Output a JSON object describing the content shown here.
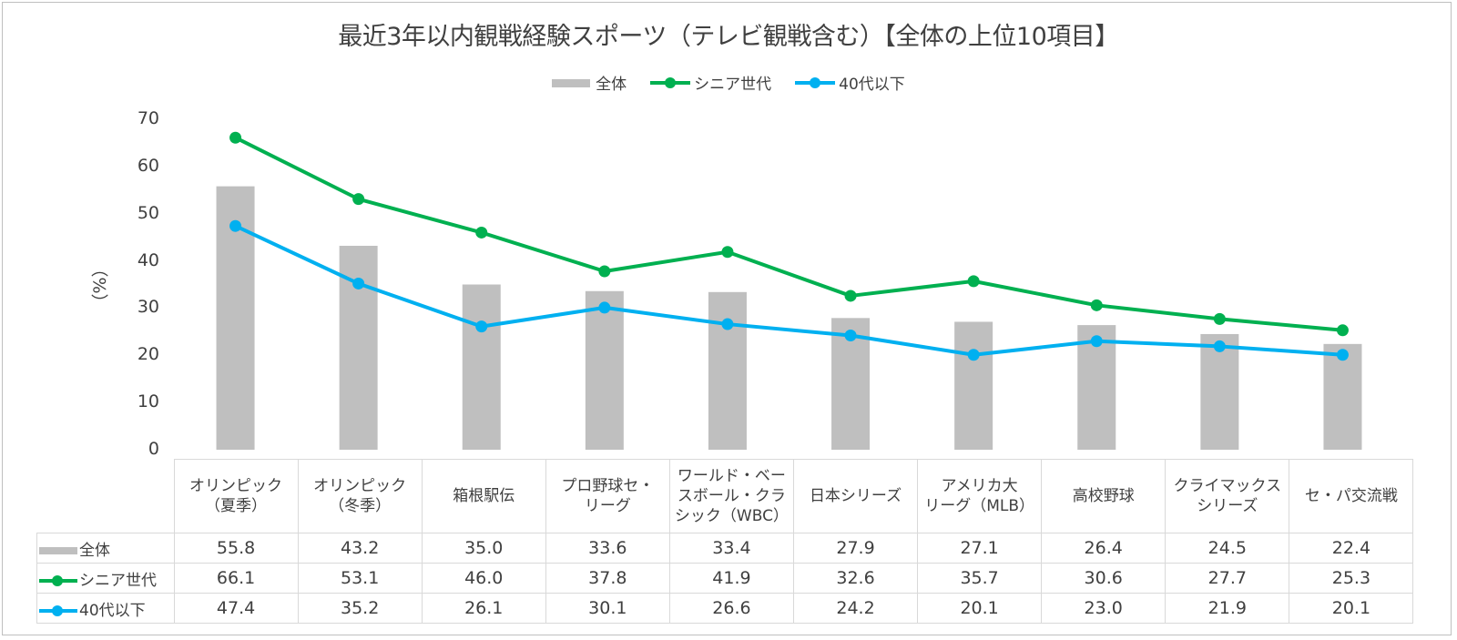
{
  "chart_data": {
    "type": "bar",
    "title": "最近3年以内観戦経験スポーツ（テレビ観戦含む）【全体の上位10項目】",
    "xlabel": "",
    "ylabel": "（%）",
    "ylim": [
      0,
      70
    ],
    "yticks": [
      "0",
      "10",
      "20",
      "30",
      "40",
      "50",
      "60",
      "70"
    ],
    "grid": false,
    "legend_position": "top-center",
    "categories": [
      "オリンピック（夏季）",
      "オリンピック（冬季）",
      "箱根駅伝",
      "プロ野球セ・リーグ",
      "ワールド・ベースボール・クラシック（WBC）",
      "日本シリーズ",
      "アメリカ大リーグ（MLB）",
      "高校野球",
      "クライマックスシリーズ",
      "セ・パ交流戦"
    ],
    "category_lines": [
      [
        "オリンピック",
        "（夏季）"
      ],
      [
        "オリンピック",
        "（冬季）"
      ],
      [
        "箱根駅伝"
      ],
      [
        "プロ野球セ・",
        "リーグ"
      ],
      [
        "ワールド・ベー",
        "スボール・クラ",
        "シック（WBC）"
      ],
      [
        "日本シリーズ"
      ],
      [
        "アメリカ大",
        "リーグ（MLB）"
      ],
      [
        "高校野球"
      ],
      [
        "クライマックス",
        "シリーズ"
      ],
      [
        "セ・パ交流戦"
      ]
    ],
    "series": [
      {
        "name": "全体",
        "type": "bar",
        "color": "#bfbfbf",
        "values": [
          55.8,
          43.2,
          35.0,
          33.6,
          33.4,
          27.9,
          27.1,
          26.4,
          24.5,
          22.4
        ],
        "labels": [
          "55.8",
          "43.2",
          "35.0",
          "33.6",
          "33.4",
          "27.9",
          "27.1",
          "26.4",
          "24.5",
          "22.4"
        ]
      },
      {
        "name": "シニア世代",
        "type": "line",
        "color": "#00b050",
        "values": [
          66.1,
          53.1,
          46.0,
          37.8,
          41.9,
          32.6,
          35.7,
          30.6,
          27.7,
          25.3
        ],
        "labels": [
          "66.1",
          "53.1",
          "46.0",
          "37.8",
          "41.9",
          "32.6",
          "35.7",
          "30.6",
          "27.7",
          "25.3"
        ]
      },
      {
        "name": "40代以下",
        "type": "line",
        "color": "#00b0f0",
        "values": [
          47.4,
          35.2,
          26.1,
          30.1,
          26.6,
          24.2,
          20.1,
          23.0,
          21.9,
          20.1
        ],
        "labels": [
          "47.4",
          "35.2",
          "26.1",
          "30.1",
          "26.6",
          "24.2",
          "20.1",
          "23.0",
          "21.9",
          "20.1"
        ]
      }
    ]
  }
}
